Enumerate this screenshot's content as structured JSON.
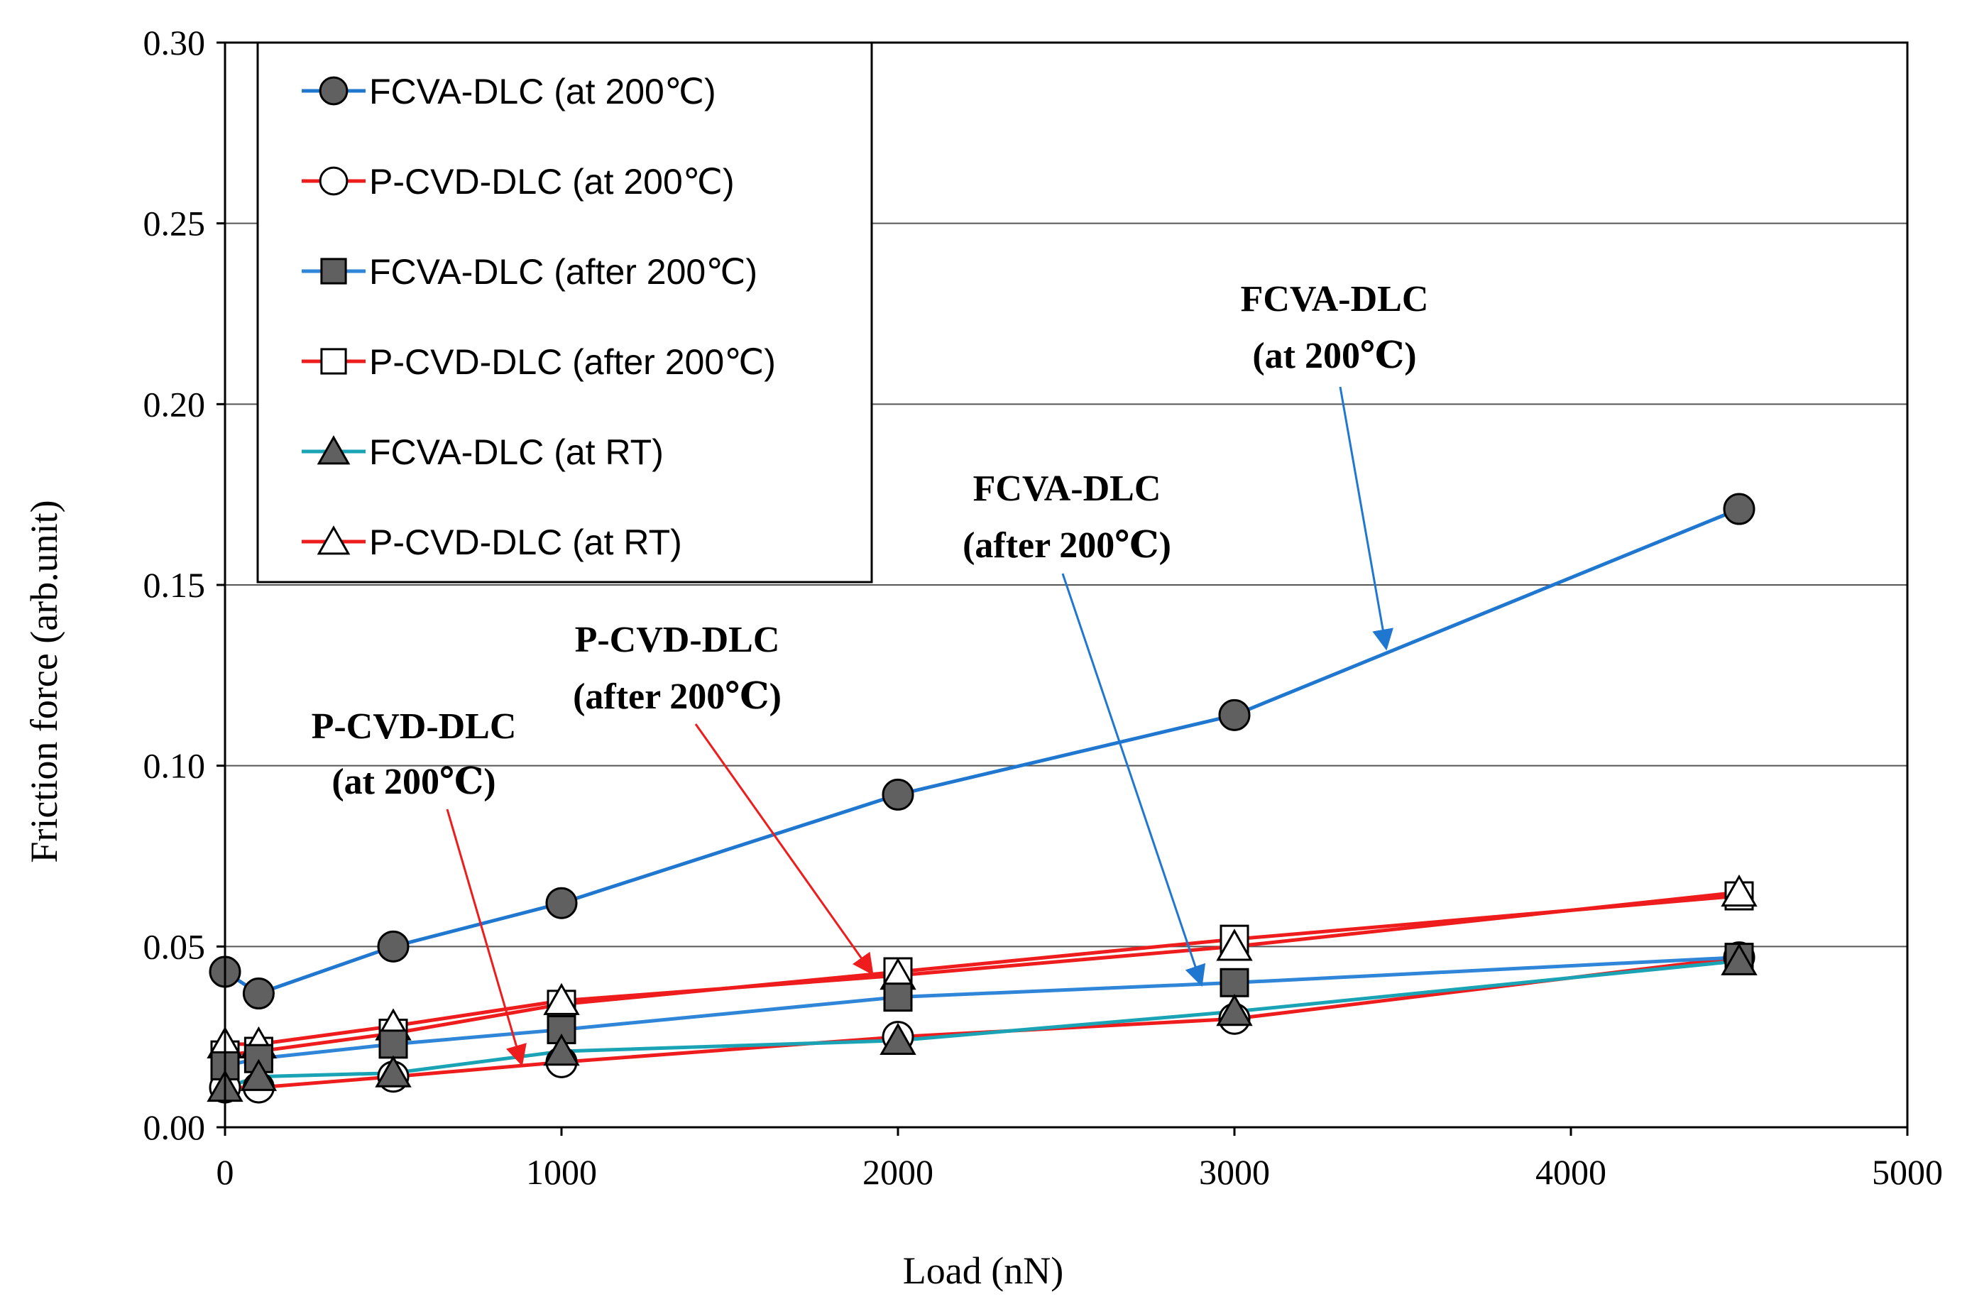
{
  "chart_data": {
    "type": "line",
    "title": "",
    "xlabel": "Load (nN)",
    "ylabel": "Friction force (arb.unit)",
    "xlim": [
      0,
      5000
    ],
    "ylim": [
      0,
      0.3
    ],
    "x_ticks": [
      "0",
      "1000",
      "2000",
      "3000",
      "4000",
      "5000"
    ],
    "y_ticks": [
      "0.00",
      "0.05",
      "0.10",
      "0.15",
      "0.20",
      "0.25",
      "0.30"
    ],
    "grid": "horizontal",
    "legend_position": "top-left",
    "x": [
      0,
      100,
      500,
      1000,
      2000,
      3000,
      4500
    ],
    "series": [
      {
        "name": "FCVA-DLC (at 200℃)",
        "color": "#1f77d0",
        "marker": "circle",
        "fill": "#606060",
        "values": [
          0.043,
          0.037,
          0.05,
          0.062,
          0.092,
          0.114,
          0.171
        ]
      },
      {
        "name": "P-CVD-DLC (at 200℃)",
        "color": "#ee1c1c",
        "marker": "circle",
        "fill": "#ffffff",
        "values": [
          0.011,
          0.011,
          0.014,
          0.018,
          0.025,
          0.03,
          0.047
        ]
      },
      {
        "name": "FCVA-DLC (after 200℃)",
        "color": "#2f86d8",
        "marker": "square",
        "fill": "#606060",
        "values": [
          0.017,
          0.019,
          0.023,
          0.027,
          0.036,
          0.04,
          0.047
        ]
      },
      {
        "name": "P-CVD-DLC (after 200℃)",
        "color": "#ee1c1c",
        "marker": "square",
        "fill": "#ffffff",
        "values": [
          0.02,
          0.021,
          0.026,
          0.034,
          0.043,
          0.052,
          0.064
        ]
      },
      {
        "name": "FCVA-DLC (at RT)",
        "color": "#1aa3b4",
        "marker": "triangle",
        "fill": "#606060",
        "values": [
          0.011,
          0.014,
          0.015,
          0.021,
          0.024,
          0.032,
          0.046
        ]
      },
      {
        "name": "P-CVD-DLC (at RT)",
        "color": "#ee1c1c",
        "marker": "triangle",
        "fill": "#ffffff",
        "values": [
          0.023,
          0.023,
          0.028,
          0.035,
          0.042,
          0.05,
          0.065
        ]
      }
    ],
    "annotations": [
      {
        "line1": "FCVA-DLC",
        "line2": "(at 200℃)",
        "color": "#1f77d0",
        "target": [
          3450,
          0.133
        ]
      },
      {
        "line1": "FCVA-DLC",
        "line2": "(after 200℃)",
        "color": "#1f77d0",
        "target": [
          2900,
          0.04
        ]
      },
      {
        "line1": "P-CVD-DLC",
        "line2": "(after 200℃)",
        "color": "#ee1c1c",
        "target": [
          1920,
          0.043
        ]
      },
      {
        "line1": "P-CVD-DLC",
        "line2": "(at 200℃)",
        "color": "#ee1c1c",
        "target": [
          880,
          0.018
        ]
      }
    ]
  }
}
